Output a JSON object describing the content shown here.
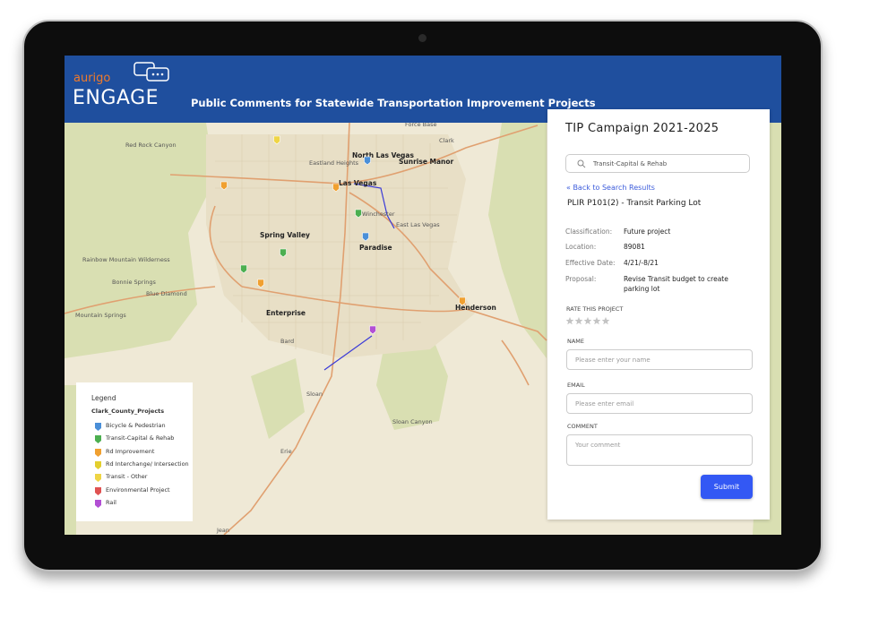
{
  "header": {
    "brand": "aurigo",
    "product": "ENGAGE",
    "title": "Public Comments for Statewide Transportation Improvement Projects"
  },
  "map": {
    "labels": [
      "Force Base",
      "Red Rock Canyon",
      "Clark",
      "North Las Vegas",
      "Sunrise Manor",
      "Eastland Heights",
      "Las Vegas",
      "Winchester",
      "East Las Vegas",
      "Spring Valley",
      "Paradise",
      "Rainbow Mountain Wilderness",
      "Bonnie Springs",
      "Blue Diamond",
      "Mountain Springs",
      "Enterprise",
      "Henderson",
      "Bard",
      "Sloan",
      "Sloan Canyon",
      "Erie",
      "Jean"
    ]
  },
  "legend": {
    "title": "Legend",
    "layer": "Clark_County_Projects",
    "items": [
      {
        "label": "Bicycle & Pedestrian",
        "color": "#4a8fd8"
      },
      {
        "label": "Transit-Capital & Rehab",
        "color": "#4caf50"
      },
      {
        "label": "Rd Improvement",
        "color": "#f0a030"
      },
      {
        "label": "Rd Interchange/ Intersection",
        "color": "#e3cf2e"
      },
      {
        "label": "Transit - Other",
        "color": "#efd545"
      },
      {
        "label": "Environmental Project",
        "color": "#e05252"
      },
      {
        "label": "Rail",
        "color": "#b24fd4"
      }
    ]
  },
  "panel": {
    "title": "TIP Campaign 2021-2025",
    "search": "Transit-Capital & Rehab",
    "back_link": "« Back to Search Results",
    "project": "PLIR P101(2) - Transit Parking Lot",
    "details": [
      {
        "label": "Classification:",
        "value": "Future project"
      },
      {
        "label": "Location:",
        "value": "89081"
      },
      {
        "label": "Effective Date:",
        "value": "4/21/-8/21"
      },
      {
        "label": "Proposal:",
        "value": "Revise Transit budget to create parking lot"
      }
    ],
    "rate": "RATE THIS PROJECT",
    "fields": [
      {
        "label": "NAME",
        "placeholder": "Please enter your name"
      },
      {
        "label": "EMAIL",
        "placeholder": "Please enter email"
      },
      {
        "label": "COMMENT",
        "placeholder": "Your comment"
      }
    ],
    "submit": "Submit"
  }
}
